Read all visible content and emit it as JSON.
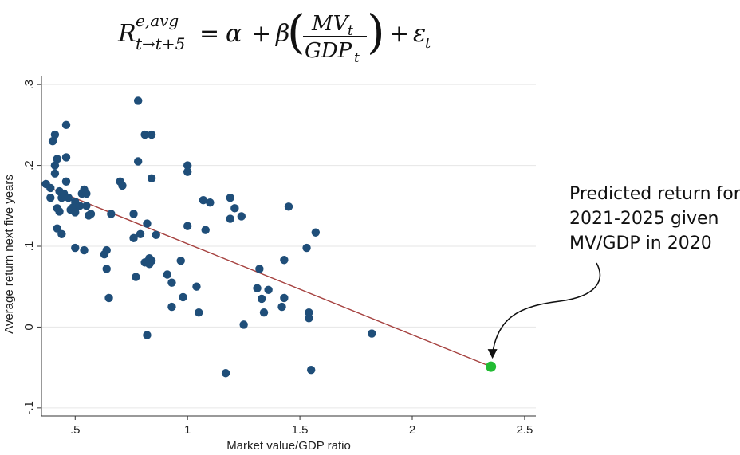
{
  "formula": {
    "R": "R",
    "sup": "e,avg",
    "sub": "t→t+5",
    "eq": "=",
    "alpha": "α",
    "plus1": "+",
    "beta": "β",
    "MV": "MV",
    "MV_sub": "t",
    "GDP": "GDP",
    "GDP_sub": "t",
    "plus2": "+",
    "eps": "ε",
    "eps_sub": "t"
  },
  "chart_data": {
    "type": "scatter",
    "xlabel": "Market value/GDP ratio",
    "ylabel": "Average return next five years",
    "xlim": [
      0.35,
      2.55
    ],
    "ylim": [
      -0.11,
      0.31
    ],
    "xticks": [
      0.5,
      1,
      1.5,
      2,
      2.5
    ],
    "xtick_labels": [
      ".5",
      "1",
      "1.5",
      "2",
      "2.5"
    ],
    "yticks": [
      -0.1,
      0,
      0.1,
      0.2,
      0.3
    ],
    "ytick_labels": [
      "-.1",
      "0",
      ".1",
      ".2",
      ".3"
    ],
    "grid": "horizontal",
    "point_color": "#1f4e79",
    "line_color": "#a5403e",
    "highlight_color": "#22bb33",
    "points": [
      [
        0.37,
        0.177
      ],
      [
        0.39,
        0.172
      ],
      [
        0.39,
        0.16
      ],
      [
        0.4,
        0.23
      ],
      [
        0.41,
        0.238
      ],
      [
        0.41,
        0.2
      ],
      [
        0.42,
        0.208
      ],
      [
        0.41,
        0.19
      ],
      [
        0.42,
        0.147
      ],
      [
        0.43,
        0.143
      ],
      [
        0.43,
        0.168
      ],
      [
        0.42,
        0.122
      ],
      [
        0.44,
        0.16
      ],
      [
        0.44,
        0.115
      ],
      [
        0.45,
        0.165
      ],
      [
        0.46,
        0.25
      ],
      [
        0.46,
        0.21
      ],
      [
        0.46,
        0.18
      ],
      [
        0.47,
        0.16
      ],
      [
        0.48,
        0.145
      ],
      [
        0.49,
        0.148
      ],
      [
        0.5,
        0.155
      ],
      [
        0.5,
        0.142
      ],
      [
        0.5,
        0.098
      ],
      [
        0.52,
        0.15
      ],
      [
        0.53,
        0.165
      ],
      [
        0.54,
        0.17
      ],
      [
        0.55,
        0.165
      ],
      [
        0.55,
        0.15
      ],
      [
        0.54,
        0.095
      ],
      [
        0.56,
        0.138
      ],
      [
        0.57,
        0.14
      ],
      [
        0.63,
        0.09
      ],
      [
        0.64,
        0.095
      ],
      [
        0.64,
        0.072
      ],
      [
        0.66,
        0.14
      ],
      [
        0.65,
        0.036
      ],
      [
        0.7,
        0.18
      ],
      [
        0.71,
        0.175
      ],
      [
        0.76,
        0.14
      ],
      [
        0.76,
        0.11
      ],
      [
        0.78,
        0.28
      ],
      [
        0.78,
        0.205
      ],
      [
        0.77,
        0.062
      ],
      [
        0.79,
        0.115
      ],
      [
        0.81,
        0.238
      ],
      [
        0.81,
        0.08
      ],
      [
        0.82,
        0.128
      ],
      [
        0.84,
        0.238
      ],
      [
        0.84,
        0.184
      ],
      [
        0.83,
        0.085
      ],
      [
        0.84,
        0.082
      ],
      [
        0.83,
        0.078
      ],
      [
        0.86,
        0.114
      ],
      [
        0.82,
        -0.01
      ],
      [
        0.91,
        0.065
      ],
      [
        0.93,
        0.055
      ],
      [
        0.93,
        0.025
      ],
      [
        0.97,
        0.082
      ],
      [
        0.98,
        0.037
      ],
      [
        1.0,
        0.2
      ],
      [
        1.0,
        0.192
      ],
      [
        1.0,
        0.125
      ],
      [
        1.04,
        0.05
      ],
      [
        1.05,
        0.018
      ],
      [
        1.07,
        0.157
      ],
      [
        1.08,
        0.12
      ],
      [
        1.1,
        0.154
      ],
      [
        1.17,
        -0.057
      ],
      [
        1.19,
        0.16
      ],
      [
        1.19,
        0.134
      ],
      [
        1.21,
        0.147
      ],
      [
        1.24,
        0.137
      ],
      [
        1.25,
        0.003
      ],
      [
        1.31,
        0.048
      ],
      [
        1.32,
        0.072
      ],
      [
        1.33,
        0.035
      ],
      [
        1.34,
        0.018
      ],
      [
        1.36,
        0.046
      ],
      [
        1.42,
        0.025
      ],
      [
        1.43,
        0.083
      ],
      [
        1.43,
        0.036
      ],
      [
        1.45,
        0.149
      ],
      [
        1.53,
        0.098
      ],
      [
        1.54,
        0.018
      ],
      [
        1.54,
        0.011
      ],
      [
        1.55,
        -0.053
      ],
      [
        1.57,
        0.117
      ],
      [
        1.82,
        -0.008
      ]
    ],
    "fit_line": {
      "x": [
        0.37,
        2.35
      ],
      "y": [
        0.174,
        -0.049
      ]
    },
    "highlight": {
      "x": 2.35,
      "y": -0.049
    },
    "annotation": {
      "lines": [
        "Predicted return for",
        "2021-2025 given",
        "MV/GDP in 2020"
      ]
    }
  }
}
